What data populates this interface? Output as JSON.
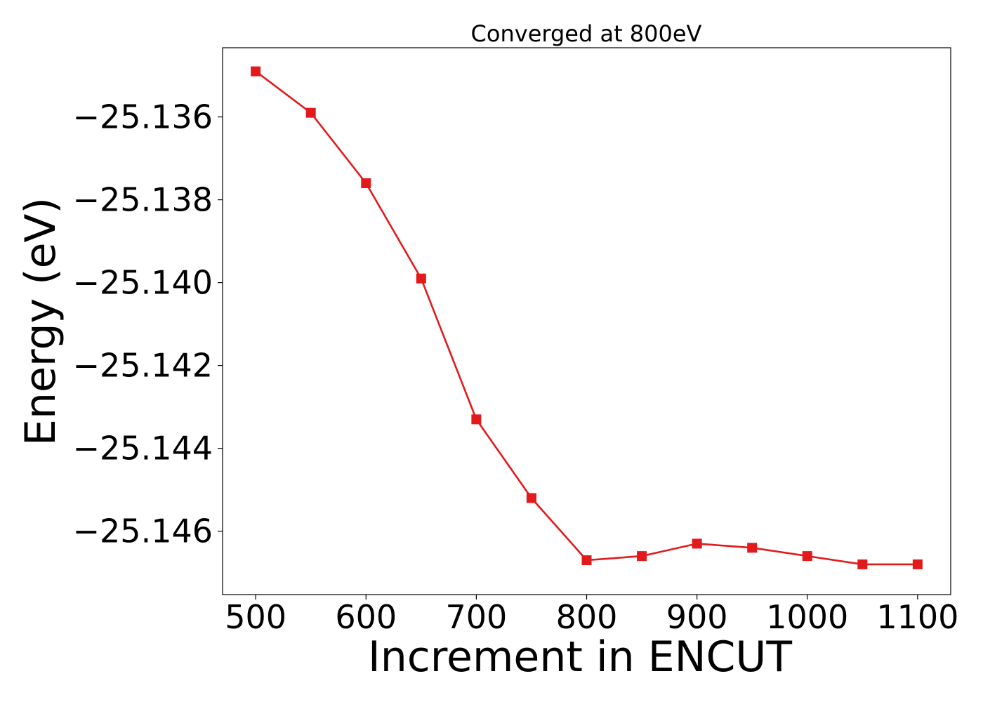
{
  "chart_data": {
    "type": "line",
    "title": "Converged at 800eV",
    "xlabel": "Increment in ENCUT",
    "ylabel": "Energy (eV)",
    "x": [
      500,
      550,
      600,
      650,
      700,
      750,
      800,
      850,
      900,
      950,
      1000,
      1050,
      1100
    ],
    "series": [
      {
        "values": [
          -25.1349,
          -25.1359,
          -25.1376,
          -25.1399,
          -25.1433,
          -25.1452,
          -25.1467,
          -25.1466,
          -25.1463,
          -25.1464,
          -25.1466,
          -25.1468,
          -25.1468
        ],
        "color": "#e31a1c",
        "marker": "square"
      }
    ],
    "xlim": [
      470,
      1130
    ],
    "ylim": [
      -25.14753,
      -25.13433
    ],
    "xticks": [
      500,
      600,
      700,
      800,
      900,
      1000,
      1100
    ],
    "xtick_labels": [
      "500",
      "600",
      "700",
      "800",
      "900",
      "1000",
      "1100"
    ],
    "yticks": [
      -25.136,
      -25.138,
      -25.14,
      -25.142,
      -25.144,
      -25.146
    ],
    "ytick_labels": [
      "−25.136",
      "−25.138",
      "−25.140",
      "−25.142",
      "−25.144",
      "−25.146"
    ],
    "grid": false,
    "legend": "none"
  }
}
